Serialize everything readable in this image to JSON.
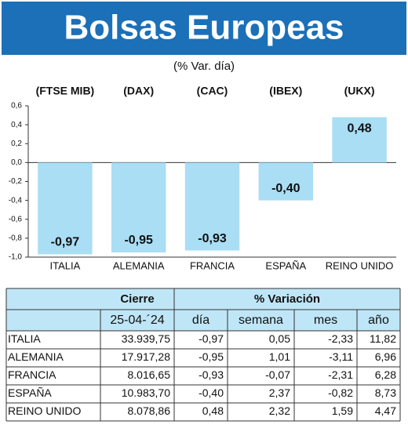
{
  "chart_data": {
    "type": "bar",
    "title": "Bolsas Europeas",
    "subtitle": "(% Var. día)",
    "index_labels": [
      "(FTSE MIB)",
      "(DAX)",
      "(CAC)",
      "(IBEX)",
      "(UKX)"
    ],
    "categories": [
      "ITALIA",
      "ALEMANIA",
      "FRANCIA",
      "ESPAÑA",
      "REINO UNIDO"
    ],
    "values": [
      -0.97,
      -0.95,
      -0.93,
      -0.4,
      0.48
    ],
    "value_labels": [
      "-0,97",
      "-0,95",
      "-0,93",
      "-0,40",
      "0,48"
    ],
    "color": "#a9def5",
    "ylim": [
      -1.0,
      0.6
    ],
    "yticks": [
      {
        "value": 0.6,
        "label": "0,6"
      },
      {
        "value": 0.4,
        "label": "0,4"
      },
      {
        "value": 0.2,
        "label": "0,2"
      },
      {
        "value": 0.0,
        "label": "0,0"
      },
      {
        "value": -0.2,
        "label": "-0,2"
      },
      {
        "value": -0.4,
        "label": "-0,4"
      },
      {
        "value": -0.6,
        "label": "-0,6"
      },
      {
        "value": -0.8,
        "label": "-0,8"
      },
      {
        "value": -1.0,
        "label": "-1,0"
      }
    ],
    "grid": false
  },
  "table": {
    "header": [
      "Cierre",
      "% Variación"
    ],
    "subheader": [
      "25-04-´24",
      "día",
      "semana",
      "mes",
      "año"
    ],
    "rows": [
      [
        "ITALIA",
        "33.939,75",
        "-0,97",
        "0,05",
        "-2,33",
        "11,82"
      ],
      [
        "ALEMANIA",
        "17.917,28",
        "-0,95",
        "1,01",
        "-3,11",
        "6,96"
      ],
      [
        "FRANCIA",
        "8.016,65",
        "-0,93",
        "-0,07",
        "-2,31",
        "6,28"
      ],
      [
        "ESPAÑA",
        "10.983,70",
        "-0,40",
        "2,37",
        "-0,82",
        "8,73"
      ],
      [
        "REINO UNIDO",
        "8.078,86",
        "0,48",
        "2,32",
        "1,59",
        "4,47"
      ]
    ]
  }
}
